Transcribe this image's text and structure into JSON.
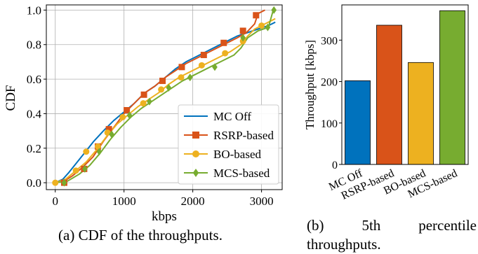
{
  "chart_data": [
    {
      "type": "line",
      "xlabel": "kbps",
      "ylabel": "CDF",
      "xlim": [
        -130,
        3300
      ],
      "ylim": [
        -0.04,
        1.03
      ],
      "xticks": [
        0,
        1000,
        2000,
        3000
      ],
      "yticks": [
        0.0,
        0.2,
        0.4,
        0.6,
        0.8,
        1.0
      ],
      "xtick_labels": [
        "0",
        "1000",
        "2000",
        "3000"
      ],
      "ytick_labels": [
        "0.0",
        "0.2",
        "0.4",
        "0.6",
        "0.8",
        "1.0"
      ],
      "grid": true,
      "legend_position": "lower-right",
      "series": [
        {
          "name": "MC Off",
          "color": "#0072bd",
          "marker": "none",
          "points": [
            [
              0,
              0
            ],
            [
              110,
              0.02
            ],
            [
              200,
              0.06
            ],
            [
              300,
              0.11
            ],
            [
              420,
              0.17
            ],
            [
              560,
              0.24
            ],
            [
              700,
              0.3
            ],
            [
              850,
              0.36
            ],
            [
              1000,
              0.41
            ],
            [
              1150,
              0.46
            ],
            [
              1300,
              0.52
            ],
            [
              1450,
              0.56
            ],
            [
              1600,
              0.61
            ],
            [
              1750,
              0.66
            ],
            [
              1900,
              0.7
            ],
            [
              2050,
              0.73
            ],
            [
              2200,
              0.76
            ],
            [
              2350,
              0.79
            ],
            [
              2500,
              0.82
            ],
            [
              2650,
              0.85
            ],
            [
              2800,
              0.87
            ],
            [
              2950,
              0.89
            ],
            [
              3100,
              0.91
            ],
            [
              3200,
              0.93
            ]
          ]
        },
        {
          "name": "RSRP-based",
          "color": "#d95319",
          "marker": "square",
          "points": [
            [
              0,
              0
            ],
            [
              130,
              0.01
            ],
            [
              250,
              0.04
            ],
            [
              400,
              0.09
            ],
            [
              550,
              0.15
            ],
            [
              700,
              0.24
            ],
            [
              850,
              0.32
            ],
            [
              1000,
              0.4
            ],
            [
              1150,
              0.46
            ],
            [
              1300,
              0.52
            ],
            [
              1450,
              0.56
            ],
            [
              1600,
              0.61
            ],
            [
              1750,
              0.65
            ],
            [
              1900,
              0.69
            ],
            [
              2050,
              0.72
            ],
            [
              2200,
              0.75
            ],
            [
              2350,
              0.78
            ],
            [
              2500,
              0.81
            ],
            [
              2650,
              0.84
            ],
            [
              2780,
              0.87
            ],
            [
              2900,
              0.92
            ],
            [
              2950,
              0.98
            ],
            [
              3050,
              1.0
            ]
          ],
          "markers": [
            [
              130,
              0.0
            ],
            [
              420,
              0.08
            ],
            [
              620,
              0.21
            ],
            [
              780,
              0.31
            ],
            [
              1040,
              0.42
            ],
            [
              1290,
              0.51
            ],
            [
              1560,
              0.59
            ],
            [
              1840,
              0.67
            ],
            [
              2160,
              0.74
            ],
            [
              2450,
              0.81
            ],
            [
              2730,
              0.88
            ],
            [
              2920,
              0.97
            ]
          ]
        },
        {
          "name": "BO-based",
          "color": "#edb120",
          "marker": "circle",
          "points": [
            [
              0,
              0
            ],
            [
              150,
              0.02
            ],
            [
              300,
              0.07
            ],
            [
              450,
              0.12
            ],
            [
              600,
              0.19
            ],
            [
              750,
              0.27
            ],
            [
              900,
              0.34
            ],
            [
              1050,
              0.39
            ],
            [
              1200,
              0.44
            ],
            [
              1350,
              0.48
            ],
            [
              1500,
              0.52
            ],
            [
              1650,
              0.57
            ],
            [
              1800,
              0.61
            ],
            [
              1950,
              0.64
            ],
            [
              2100,
              0.67
            ],
            [
              2250,
              0.7
            ],
            [
              2400,
              0.73
            ],
            [
              2550,
              0.76
            ],
            [
              2700,
              0.8
            ],
            [
              2800,
              0.85
            ],
            [
              2900,
              0.89
            ],
            [
              3050,
              0.92
            ],
            [
              3200,
              0.95
            ]
          ],
          "markers": [
            [
              0,
              0.0
            ],
            [
              300,
              0.07
            ],
            [
              450,
              0.18
            ],
            [
              620,
              0.21
            ],
            [
              760,
              0.29
            ],
            [
              980,
              0.38
            ],
            [
              1280,
              0.46
            ],
            [
              1540,
              0.54
            ],
            [
              1830,
              0.61
            ],
            [
              2130,
              0.68
            ],
            [
              2470,
              0.75
            ],
            [
              2730,
              0.82
            ],
            [
              3000,
              0.91
            ]
          ]
        },
        {
          "name": "MCS-based",
          "color": "#77ac30",
          "marker": "diamond",
          "points": [
            [
              0,
              0
            ],
            [
              180,
              0.01
            ],
            [
              350,
              0.05
            ],
            [
              500,
              0.1
            ],
            [
              650,
              0.17
            ],
            [
              800,
              0.25
            ],
            [
              950,
              0.32
            ],
            [
              1100,
              0.38
            ],
            [
              1250,
              0.43
            ],
            [
              1400,
              0.47
            ],
            [
              1550,
              0.51
            ],
            [
              1700,
              0.55
            ],
            [
              1850,
              0.59
            ],
            [
              2000,
              0.62
            ],
            [
              2150,
              0.65
            ],
            [
              2300,
              0.68
            ],
            [
              2450,
              0.71
            ],
            [
              2600,
              0.74
            ],
            [
              2700,
              0.78
            ],
            [
              2800,
              0.84
            ],
            [
              2950,
              0.88
            ],
            [
              3100,
              0.9
            ],
            [
              3170,
              1.0
            ]
          ],
          "markers": [
            [
              130,
              0.0
            ],
            [
              430,
              0.08
            ],
            [
              640,
              0.18
            ],
            [
              820,
              0.28
            ],
            [
              1080,
              0.39
            ],
            [
              1370,
              0.47
            ],
            [
              1650,
              0.55
            ],
            [
              1960,
              0.61
            ],
            [
              2320,
              0.67
            ],
            [
              2730,
              0.84
            ],
            [
              3090,
              0.9
            ],
            [
              3180,
              1.0
            ]
          ]
        }
      ]
    },
    {
      "type": "bar",
      "ylabel": "Throughput [kbps]",
      "xlabel": "",
      "categories": [
        "MC Off",
        "RSRP-based",
        "BO-based",
        "MCS-based"
      ],
      "values": [
        202,
        336,
        246,
        371
      ],
      "colors": [
        "#0072bd",
        "#d95319",
        "#edb120",
        "#77ac30"
      ],
      "ylim": [
        0,
        385
      ],
      "yticks": [
        0,
        100,
        200,
        300
      ],
      "ytick_labels": [
        "0",
        "100",
        "200",
        "300"
      ],
      "grid": false
    }
  ],
  "captions": {
    "a": "(a) CDF of the throughputs.",
    "b_line1_left": "(b)",
    "b_line1_mid": "5th",
    "b_line1_right": "percentile",
    "b_line2": "throughputs."
  }
}
